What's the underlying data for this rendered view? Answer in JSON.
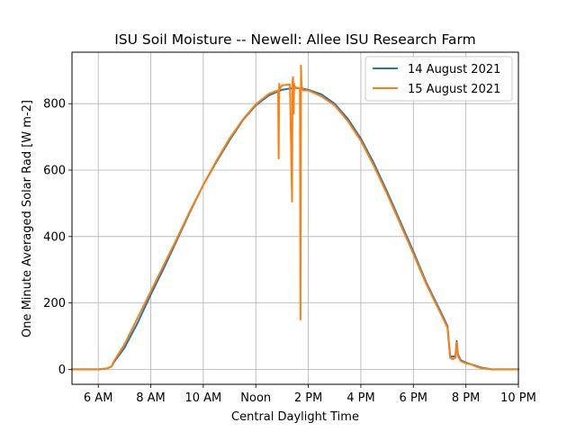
{
  "chart_data": {
    "type": "line",
    "title": "ISU Soil Moisture -- Newell: Allee ISU Research Farm",
    "xlabel": "Central Daylight Time",
    "ylabel": "One Minute Averaged Solar Rad [W m-2]",
    "xlim": [
      5.0,
      22.0
    ],
    "ylim": [
      -45,
      955
    ],
    "grid": true,
    "legend_position": "top-right",
    "x_ticks": [
      {
        "value": 6,
        "label": "6 AM"
      },
      {
        "value": 8,
        "label": "8 AM"
      },
      {
        "value": 10,
        "label": "10 AM"
      },
      {
        "value": 12,
        "label": "Noon"
      },
      {
        "value": 14,
        "label": "2 PM"
      },
      {
        "value": 16,
        "label": "4 PM"
      },
      {
        "value": 18,
        "label": "6 PM"
      },
      {
        "value": 20,
        "label": "8 PM"
      },
      {
        "value": 22,
        "label": "10 PM"
      }
    ],
    "y_ticks": [
      {
        "value": 0,
        "label": "0"
      },
      {
        "value": 200,
        "label": "200"
      },
      {
        "value": 400,
        "label": "400"
      },
      {
        "value": 600,
        "label": "600"
      },
      {
        "value": 800,
        "label": "800"
      }
    ],
    "series": [
      {
        "name": "14 August 2021",
        "color": "#1f77b4",
        "x": [
          5.0,
          6.0,
          6.3,
          6.5,
          6.6,
          7.0,
          7.5,
          8.0,
          8.5,
          9.0,
          9.5,
          10.0,
          10.5,
          11.0,
          11.5,
          12.0,
          12.5,
          13.0,
          13.5,
          14.0,
          14.5,
          15.0,
          15.5,
          16.0,
          16.5,
          17.0,
          17.5,
          18.0,
          18.5,
          19.0,
          19.3,
          19.4,
          19.5,
          19.6,
          19.65,
          19.7,
          19.8,
          20.0,
          20.2,
          20.4,
          20.6,
          21.0,
          21.5,
          22.0
        ],
        "y": [
          0,
          0,
          2,
          8,
          22,
          65,
          140,
          225,
          305,
          390,
          475,
          555,
          625,
          690,
          750,
          795,
          825,
          842,
          848,
          842,
          828,
          800,
          755,
          695,
          620,
          535,
          445,
          355,
          260,
          180,
          130,
          40,
          38,
          40,
          85,
          45,
          28,
          20,
          15,
          10,
          5,
          0,
          0,
          0
        ]
      },
      {
        "name": "15 August 2021",
        "color": "#ff7f0e",
        "x": [
          5.0,
          6.0,
          6.3,
          6.5,
          6.6,
          7.0,
          7.5,
          8.0,
          8.5,
          9.0,
          9.5,
          10.0,
          10.5,
          11.0,
          11.5,
          12.0,
          12.5,
          12.85,
          12.87,
          12.89,
          12.92,
          13.0,
          13.3,
          13.38,
          13.4,
          13.42,
          13.44,
          13.46,
          13.48,
          13.5,
          13.68,
          13.7,
          13.72,
          13.74,
          13.76,
          13.78,
          13.8,
          14.0,
          14.5,
          15.0,
          15.5,
          16.0,
          16.5,
          17.0,
          17.5,
          18.0,
          18.5,
          19.0,
          19.3,
          19.4,
          19.5,
          19.6,
          19.65,
          19.7,
          19.8,
          20.0,
          20.2,
          20.4,
          20.6,
          21.0,
          21.5,
          22.0
        ],
        "y": [
          0,
          0,
          2,
          8,
          25,
          75,
          155,
          235,
          315,
          395,
          478,
          555,
          628,
          695,
          752,
          798,
          830,
          840,
          635,
          860,
          845,
          855,
          858,
          505,
          870,
          880,
          770,
          860,
          845,
          850,
          845,
          150,
          915,
          860,
          850,
          845,
          840,
          840,
          822,
          795,
          748,
          688,
          612,
          528,
          438,
          348,
          255,
          175,
          125,
          35,
          30,
          35,
          80,
          40,
          25,
          18,
          15,
          8,
          3,
          0,
          0,
          0
        ]
      }
    ]
  }
}
